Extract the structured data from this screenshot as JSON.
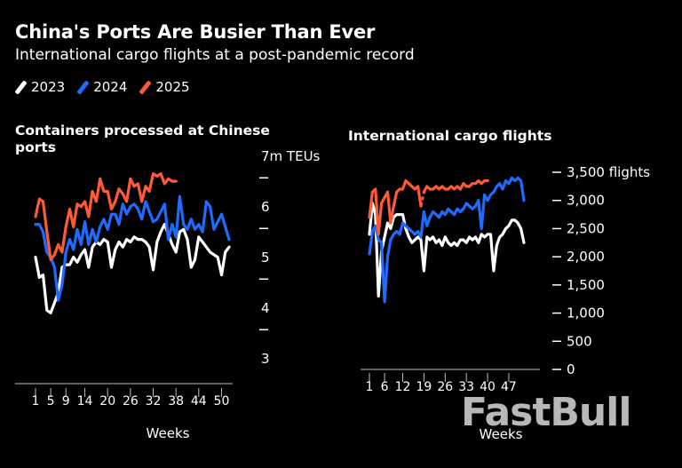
{
  "header": {
    "title": "China's Ports Are Busier Than Ever",
    "subtitle": "International cargo flights at a post-pandemic record"
  },
  "legend": [
    {
      "label": "2023",
      "color": "#ffffff"
    },
    {
      "label": "2024",
      "color": "#1f6bff"
    },
    {
      "label": "2025",
      "color": "#ff5a36"
    }
  ],
  "watermark": "FastBull",
  "chart_data": [
    {
      "type": "line",
      "title": "Containers processed at Chinese ports",
      "xlabel": "Weeks",
      "y_unit_label": "7m TEUs",
      "xlim": [
        1,
        52
      ],
      "ylim": [
        3,
        7
      ],
      "x_ticks": [
        1,
        5,
        9,
        14,
        20,
        26,
        32,
        38,
        44,
        50
      ],
      "y_tick_labels": [
        {
          "value": 7,
          "label": "7m TEUs"
        },
        {
          "value": 6,
          "label": "6"
        },
        {
          "value": 5,
          "label": "5"
        },
        {
          "value": 4,
          "label": "4"
        },
        {
          "value": 3,
          "label": "3"
        }
      ],
      "y_tick_marks": [
        6.75,
        5.75,
        4.75,
        3.75
      ],
      "series": [
        {
          "name": "2023",
          "color": "#ffffff",
          "x": [
            1,
            2,
            3,
            4,
            5,
            6,
            7,
            8,
            9,
            10,
            11,
            12,
            13,
            14,
            15,
            16,
            17,
            18,
            19,
            20,
            21,
            22,
            23,
            24,
            25,
            26,
            27,
            28,
            29,
            30,
            31,
            32,
            33,
            34,
            35,
            36,
            37,
            38,
            39,
            40,
            41,
            42,
            43,
            44,
            45,
            46,
            47,
            48,
            49,
            50,
            51,
            52
          ],
          "values": [
            5.2,
            4.8,
            4.85,
            4.15,
            4.1,
            4.3,
            4.5,
            5.0,
            5.05,
            5.05,
            5.2,
            5.1,
            5.25,
            5.35,
            5.0,
            5.4,
            5.5,
            5.45,
            5.55,
            5.5,
            5.0,
            5.35,
            5.5,
            5.4,
            5.55,
            5.5,
            5.6,
            5.55,
            5.55,
            5.5,
            5.4,
            4.95,
            5.5,
            5.7,
            5.85,
            5.65,
            5.45,
            5.3,
            5.7,
            5.75,
            5.55,
            5.0,
            5.15,
            5.6,
            5.5,
            5.4,
            5.3,
            5.25,
            5.2,
            4.85,
            5.3,
            5.4
          ]
        },
        {
          "name": "2024",
          "color": "#1f6bff",
          "x": [
            1,
            2,
            3,
            4,
            5,
            6,
            7,
            8,
            9,
            10,
            11,
            12,
            13,
            14,
            15,
            16,
            17,
            18,
            19,
            20,
            21,
            22,
            23,
            24,
            25,
            26,
            27,
            28,
            29,
            30,
            31,
            32,
            33,
            34,
            35,
            36,
            37,
            38,
            39,
            40,
            41,
            42,
            43,
            44,
            45,
            46,
            47,
            48,
            49,
            50,
            51,
            52
          ],
          "values": [
            5.85,
            5.85,
            5.7,
            5.3,
            5.2,
            5.0,
            4.35,
            4.65,
            5.3,
            5.55,
            5.35,
            5.75,
            5.45,
            5.9,
            5.45,
            5.75,
            5.5,
            5.8,
            5.95,
            5.75,
            6.05,
            6.05,
            5.85,
            6.25,
            6.05,
            6.2,
            6.25,
            6.15,
            5.95,
            6.3,
            6.1,
            5.9,
            5.95,
            6.1,
            6.25,
            5.55,
            5.85,
            5.6,
            6.4,
            5.85,
            5.75,
            5.95,
            5.75,
            5.85,
            5.7,
            6.3,
            6.2,
            5.75,
            5.9,
            6.05,
            5.8,
            5.55
          ]
        },
        {
          "name": "2025",
          "color": "#ff5a36",
          "x": [
            1,
            2,
            3,
            4,
            5,
            6,
            7,
            8,
            9,
            10,
            11,
            12,
            13,
            14,
            15,
            16,
            17,
            18,
            19,
            20,
            21,
            22,
            23,
            24,
            25,
            26,
            27,
            28,
            29,
            30,
            31,
            32,
            33,
            34,
            35,
            36,
            37,
            38
          ],
          "values": [
            6.0,
            6.35,
            6.3,
            5.7,
            5.15,
            5.25,
            5.45,
            5.3,
            5.8,
            6.15,
            5.8,
            6.25,
            6.2,
            6.3,
            6.0,
            6.5,
            6.3,
            6.75,
            6.5,
            6.5,
            6.15,
            6.3,
            6.55,
            6.45,
            6.3,
            6.75,
            6.6,
            6.65,
            6.3,
            6.6,
            6.5,
            6.85,
            6.8,
            6.85,
            6.65,
            6.75,
            6.7,
            6.7
          ]
        }
      ]
    },
    {
      "type": "line",
      "title": "International cargo flights",
      "xlabel": "Weeks",
      "xlim": [
        1,
        52
      ],
      "ylim": [
        0,
        3500
      ],
      "x_ticks": [
        1,
        6,
        12,
        19,
        26,
        33,
        40,
        47
      ],
      "y_tick_labels": [
        {
          "value": 3500,
          "label": "3,500 flights"
        },
        {
          "value": 3000,
          "label": "3,000"
        },
        {
          "value": 2500,
          "label": "2,500"
        },
        {
          "value": 2000,
          "label": "2,000"
        },
        {
          "value": 1500,
          "label": "1,500"
        },
        {
          "value": 1000,
          "label": "1,000"
        },
        {
          "value": 500,
          "label": "500"
        },
        {
          "value": 0,
          "label": "0"
        }
      ],
      "series": [
        {
          "name": "2023",
          "color": "#ffffff",
          "x": [
            1,
            2,
            3,
            4,
            5,
            6,
            7,
            8,
            9,
            10,
            11,
            12,
            13,
            14,
            15,
            16,
            17,
            18,
            19,
            20,
            21,
            22,
            23,
            24,
            25,
            26,
            27,
            28,
            29,
            30,
            31,
            32,
            33,
            34,
            35,
            36,
            37,
            38,
            39,
            40,
            41,
            42,
            43,
            44,
            45,
            46,
            47,
            48,
            49,
            50,
            51,
            52
          ],
          "values": [
            2400,
            2950,
            2750,
            1300,
            2100,
            2350,
            2600,
            2500,
            2700,
            2750,
            2750,
            2750,
            2500,
            2350,
            2250,
            2300,
            2350,
            2300,
            1750,
            2350,
            2300,
            2350,
            2250,
            2300,
            2200,
            2350,
            2250,
            2200,
            2250,
            2200,
            2300,
            2300,
            2250,
            2350,
            2300,
            2350,
            2250,
            2400,
            2350,
            2400,
            2400,
            1750,
            2200,
            2350,
            2400,
            2500,
            2550,
            2650,
            2650,
            2600,
            2500,
            2250
          ],
          "dashed_x": [
            40,
            41
          ]
        },
        {
          "name": "2024",
          "color": "#1f6bff",
          "x": [
            1,
            2,
            3,
            4,
            5,
            6,
            7,
            8,
            9,
            10,
            11,
            12,
            13,
            14,
            15,
            16,
            17,
            18,
            19,
            20,
            21,
            22,
            23,
            24,
            25,
            26,
            27,
            28,
            29,
            30,
            31,
            32,
            33,
            34,
            35,
            36,
            37,
            38,
            39,
            40,
            41,
            42,
            43,
            44,
            45,
            46,
            47,
            48,
            49,
            50,
            51,
            52
          ],
          "values": [
            2050,
            2450,
            2550,
            2300,
            2250,
            1200,
            2000,
            2300,
            2400,
            2450,
            2400,
            2600,
            2550,
            2500,
            2450,
            2400,
            2450,
            2350,
            2800,
            2550,
            2700,
            2800,
            2750,
            2700,
            2800,
            2750,
            2850,
            2800,
            2750,
            2850,
            2800,
            2850,
            2950,
            2900,
            2850,
            2900,
            3000,
            2500,
            3100,
            3000,
            3100,
            3150,
            3250,
            3300,
            3200,
            3350,
            3300,
            3400,
            3350,
            3400,
            3350,
            3000
          ]
        },
        {
          "name": "2025",
          "color": "#ff5a36",
          "x": [
            1,
            2,
            3,
            4,
            5,
            6,
            7,
            8,
            9,
            10,
            11,
            12,
            13,
            14,
            15,
            16,
            17,
            18,
            19,
            20,
            21,
            22,
            23,
            24,
            25,
            26,
            27,
            28,
            29,
            30,
            31,
            32,
            33,
            34,
            35,
            36,
            37,
            38,
            39,
            40
          ],
          "values": [
            2700,
            3150,
            3200,
            2400,
            2950,
            3050,
            3150,
            2600,
            2900,
            3150,
            3200,
            3200,
            3350,
            3300,
            3250,
            3200,
            3250,
            2900,
            3150,
            3250,
            3200,
            3200,
            3250,
            3200,
            3250,
            3200,
            3200,
            3250,
            3200,
            3250,
            3200,
            3300,
            3250,
            3250,
            3300,
            3300,
            3350,
            3300,
            3350,
            3350
          ],
          "dashed_x": [
            18,
            19
          ]
        }
      ]
    }
  ]
}
